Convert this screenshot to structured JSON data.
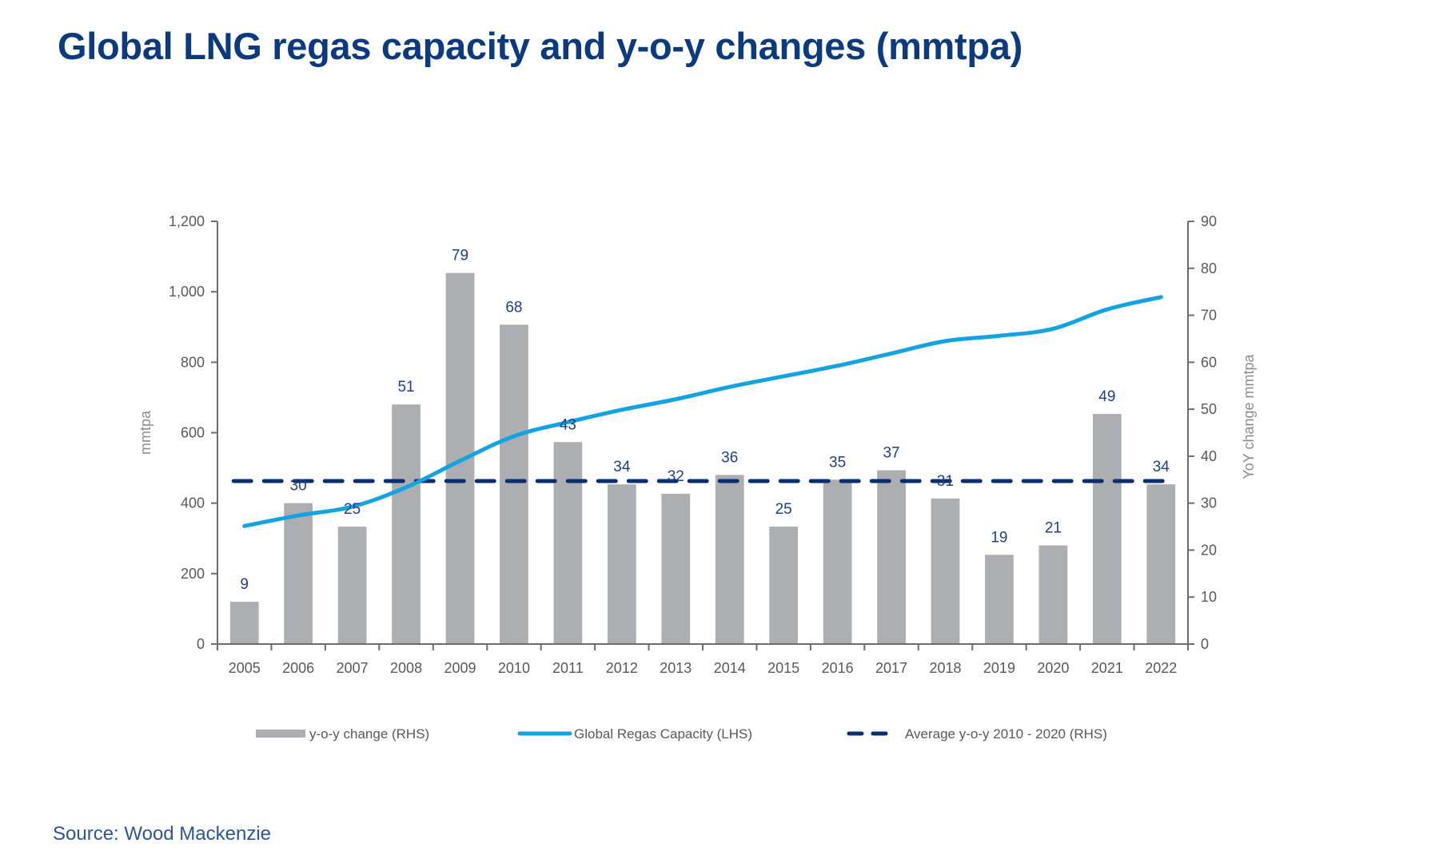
{
  "title": "Global LNG regas capacity and y-o-y changes (mmtpa)",
  "source": "Source: Wood Mackenzie",
  "colors": {
    "title": "#0b3a7e",
    "bar": "#adaeb1",
    "line": "#13a3e0",
    "average": "#0b2e6e",
    "label": "#1f3f86"
  },
  "chart_data": {
    "type": "bar+line",
    "title": "Global LNG regas capacity and y-o-y changes (mmtpa)",
    "categories": [
      "2005",
      "2006",
      "2007",
      "2008",
      "2009",
      "2010",
      "2011",
      "2012",
      "2013",
      "2014",
      "2015",
      "2016",
      "2017",
      "2018",
      "2019",
      "2020",
      "2021",
      "2022"
    ],
    "ylabel_left": "mmtpa",
    "ylabel_right": "YoY change mmtpa",
    "ylim_left": [
      0,
      1200
    ],
    "ylim_right": [
      0,
      90
    ],
    "yticks_left": [
      "0",
      "200",
      "400",
      "600",
      "800",
      "1,000",
      "1,200"
    ],
    "yticks_right": [
      "0",
      "10",
      "20",
      "30",
      "40",
      "50",
      "60",
      "70",
      "80",
      "90"
    ],
    "grid": false,
    "legend_position": "bottom",
    "series": [
      {
        "name": "y-o-y change (RHS)",
        "type": "bar",
        "axis": "right",
        "values": [
          9,
          30,
          25,
          51,
          79,
          68,
          43,
          34,
          32,
          36,
          25,
          35,
          37,
          31,
          19,
          21,
          49,
          34
        ],
        "labels": [
          "9",
          "30",
          "25",
          "51",
          "79",
          "68",
          "43",
          "34",
          "32",
          "36",
          "25",
          "35",
          "37",
          "31",
          "19",
          "21",
          "49",
          "34"
        ]
      },
      {
        "name": "Global Regas Capacity (LHS)",
        "type": "line",
        "axis": "left",
        "values": [
          335,
          365,
          390,
          445,
          520,
          590,
          630,
          665,
          695,
          730,
          760,
          790,
          825,
          860,
          875,
          895,
          950,
          985
        ]
      },
      {
        "name": "Average y-o-y 2010 - 2020 (RHS)",
        "type": "line-dashed",
        "axis": "right",
        "value": 34.7
      }
    ]
  }
}
